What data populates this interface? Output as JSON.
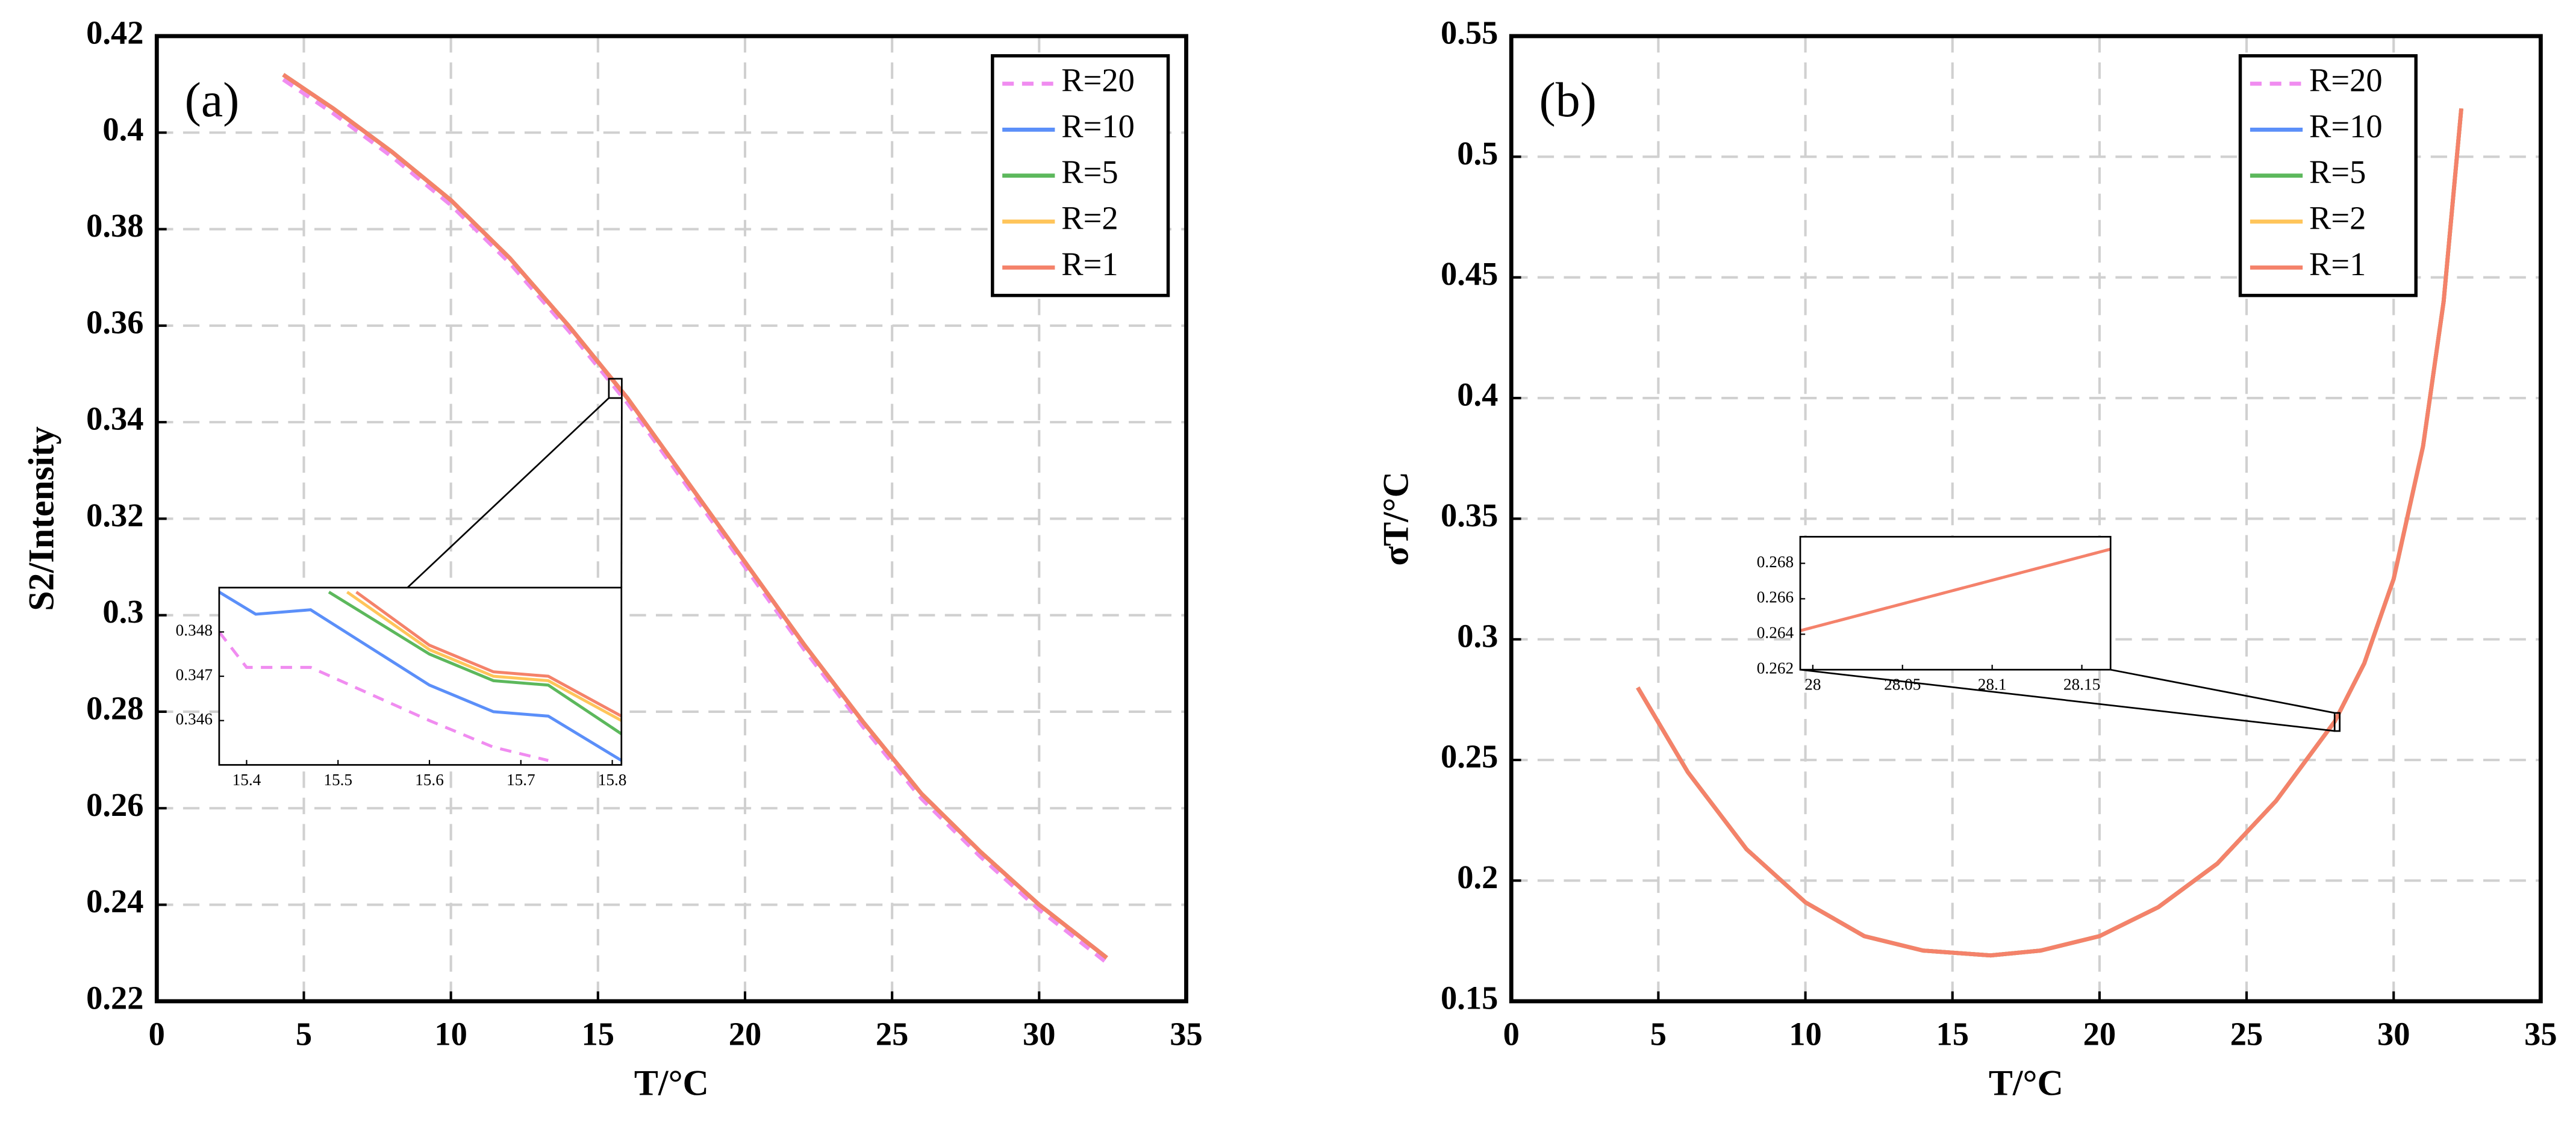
{
  "chart_data": [
    {
      "type": "line",
      "annotation": "(a)",
      "xlabel": "T/°C",
      "ylabel": "S2/Intensity",
      "xlim": [
        0,
        35
      ],
      "xticks": [
        0,
        5,
        10,
        15,
        20,
        25,
        30,
        35
      ],
      "ylim": [
        0.22,
        0.42
      ],
      "yticks": [
        0.22,
        0.24,
        0.26,
        0.28,
        0.3,
        0.32,
        0.34,
        0.36,
        0.38,
        0.4,
        0.42
      ],
      "grid": true,
      "legend": "upper right",
      "x": [
        4.3,
        6,
        8,
        10,
        12,
        14,
        16,
        18,
        20,
        22,
        24,
        26,
        28,
        30,
        32.3
      ],
      "series": [
        {
          "name": "R=20",
          "color": "#f08cf0",
          "dashed": true,
          "values": [
            0.411,
            0.404,
            0.395,
            0.385,
            0.373,
            0.359,
            0.344,
            0.327,
            0.31,
            0.293,
            0.277,
            0.262,
            0.25,
            0.239,
            0.228
          ]
        },
        {
          "name": "R=10",
          "color": "#5b8ff9",
          "values": [
            0.412,
            0.405,
            0.396,
            0.386,
            0.374,
            0.36,
            0.345,
            0.328,
            0.311,
            0.294,
            0.278,
            0.263,
            0.251,
            0.24,
            0.229
          ]
        },
        {
          "name": "R=5",
          "color": "#5cb85c",
          "values": [
            0.412,
            0.405,
            0.396,
            0.386,
            0.374,
            0.36,
            0.345,
            0.328,
            0.311,
            0.294,
            0.278,
            0.263,
            0.251,
            0.24,
            0.229
          ]
        },
        {
          "name": "R=2",
          "color": "#ffc55a",
          "values": [
            0.412,
            0.405,
            0.396,
            0.386,
            0.374,
            0.36,
            0.345,
            0.328,
            0.311,
            0.294,
            0.278,
            0.263,
            0.251,
            0.24,
            0.229
          ]
        },
        {
          "name": "R=1",
          "color": "#f4826a",
          "values": [
            0.412,
            0.405,
            0.396,
            0.386,
            0.374,
            0.36,
            0.345,
            0.328,
            0.311,
            0.294,
            0.278,
            0.263,
            0.251,
            0.24,
            0.229
          ]
        }
      ],
      "inset": {
        "type": "line",
        "xlim": [
          15.37,
          15.81
        ],
        "xticks": [
          15.4,
          15.5,
          15.6,
          15.7,
          15.8
        ],
        "ylim": [
          0.345,
          0.349
        ],
        "yticks": [
          0.346,
          0.347,
          0.348
        ],
        "series": [
          {
            "color": "#f08cf0",
            "dashed": true,
            "x": [
              15.37,
              15.4,
              15.47,
              15.6,
              15.67,
              15.73
            ],
            "values": [
              0.348,
              0.3472,
              0.3472,
              0.346,
              0.3454,
              0.3451
            ]
          },
          {
            "color": "#5b8ff9",
            "x": [
              15.37,
              15.41,
              15.47,
              15.6,
              15.67,
              15.73,
              15.81
            ],
            "values": [
              0.3489,
              0.3484,
              0.3485,
              0.3468,
              0.3462,
              0.3461,
              0.3451
            ]
          },
          {
            "color": "#5cb85c",
            "x": [
              15.49,
              15.6,
              15.67,
              15.73,
              15.81
            ],
            "values": [
              0.3489,
              0.3475,
              0.3469,
              0.3468,
              0.3457
            ]
          },
          {
            "color": "#ffc55a",
            "x": [
              15.51,
              15.6,
              15.67,
              15.73,
              15.81
            ],
            "values": [
              0.3489,
              0.3476,
              0.347,
              0.3469,
              0.346
            ]
          },
          {
            "color": "#f4826a",
            "x": [
              15.52,
              15.6,
              15.67,
              15.73,
              15.81
            ],
            "values": [
              0.3489,
              0.3477,
              0.3471,
              0.347,
              0.3461
            ]
          }
        ]
      }
    },
    {
      "type": "line",
      "annotation": "(b)",
      "xlabel": "T/°C",
      "ylabel": "σT/°C",
      "xlim": [
        0,
        35
      ],
      "xticks": [
        0,
        5,
        10,
        15,
        20,
        25,
        30,
        35
      ],
      "ylim": [
        0.15,
        0.55
      ],
      "yticks": [
        0.15,
        0.2,
        0.25,
        0.3,
        0.35,
        0.4,
        0.45,
        0.5,
        0.55
      ],
      "grid": true,
      "legend": "upper right",
      "x": [
        4.3,
        6,
        8,
        10,
        12,
        14,
        16.3,
        18,
        20,
        22,
        24,
        26,
        28,
        29,
        30,
        31,
        31.7,
        32.3
      ],
      "series": [
        {
          "name": "R=20",
          "color": "#f08cf0",
          "dashed": true,
          "values": [
            0.28,
            0.245,
            0.213,
            0.191,
            0.177,
            0.171,
            0.169,
            0.171,
            0.177,
            0.189,
            0.207,
            0.233,
            0.266,
            0.29,
            0.325,
            0.38,
            0.44,
            0.52
          ]
        },
        {
          "name": "R=10",
          "color": "#5b8ff9",
          "values": [
            0.28,
            0.245,
            0.213,
            0.191,
            0.177,
            0.171,
            0.169,
            0.171,
            0.177,
            0.189,
            0.207,
            0.233,
            0.266,
            0.29,
            0.325,
            0.38,
            0.44,
            0.52
          ]
        },
        {
          "name": "R=5",
          "color": "#5cb85c",
          "values": [
            0.28,
            0.245,
            0.213,
            0.191,
            0.177,
            0.171,
            0.169,
            0.171,
            0.177,
            0.189,
            0.207,
            0.233,
            0.266,
            0.29,
            0.325,
            0.38,
            0.44,
            0.52
          ]
        },
        {
          "name": "R=2",
          "color": "#ffc55a",
          "values": [
            0.28,
            0.245,
            0.213,
            0.191,
            0.177,
            0.171,
            0.169,
            0.171,
            0.177,
            0.189,
            0.207,
            0.233,
            0.266,
            0.29,
            0.325,
            0.38,
            0.44,
            0.52
          ]
        },
        {
          "name": "R=1",
          "color": "#f4826a",
          "values": [
            0.28,
            0.245,
            0.213,
            0.191,
            0.177,
            0.171,
            0.169,
            0.171,
            0.177,
            0.189,
            0.207,
            0.233,
            0.266,
            0.29,
            0.325,
            0.38,
            0.44,
            0.52
          ]
        }
      ],
      "inset": {
        "type": "line",
        "xlim": [
          27.993,
          28.166
        ],
        "xticks": [
          28,
          28.05,
          28.1,
          28.15
        ],
        "ylim": [
          0.262,
          0.2695
        ],
        "yticks": [
          0.262,
          0.264,
          0.266,
          0.268
        ],
        "series": [
          {
            "color": "#f08cf0",
            "dashed": true,
            "x": [
              27.993,
              28.166
            ],
            "values": [
              0.2642,
              0.2688
            ]
          },
          {
            "color": "#f4826a",
            "x": [
              27.993,
              28.166
            ],
            "values": [
              0.2642,
              0.2688
            ]
          }
        ]
      }
    }
  ]
}
